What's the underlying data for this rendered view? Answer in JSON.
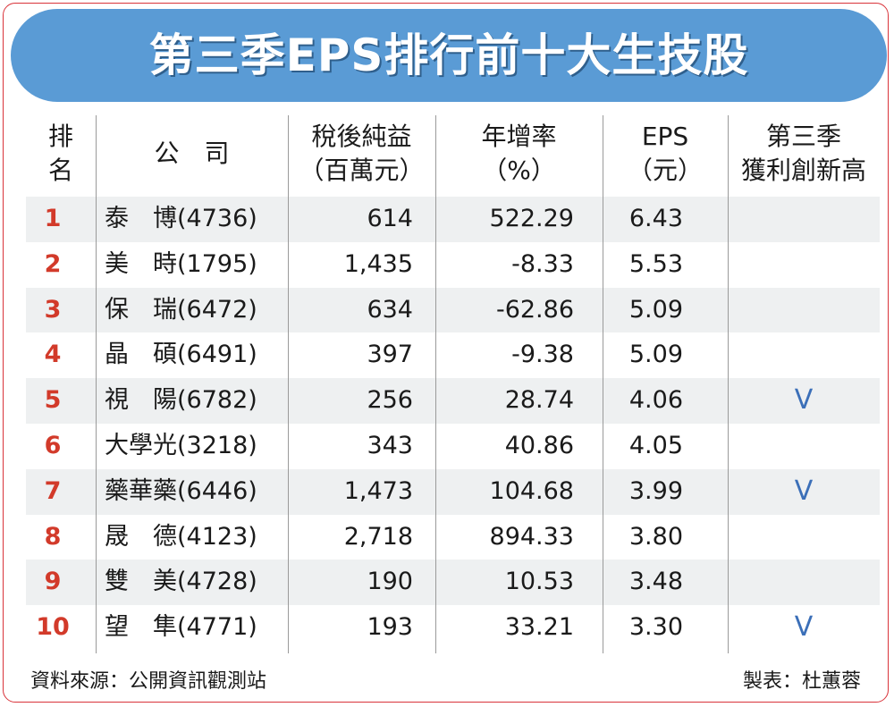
{
  "title": "第三季EPS排行前十大生技股",
  "headers": {
    "rank": [
      "排",
      "名"
    ],
    "company": "公　司",
    "net": [
      "稅後純益",
      "（百萬元）"
    ],
    "growth": [
      "年增率",
      "（%）"
    ],
    "eps": [
      "EPS",
      "（元）"
    ],
    "record": [
      "第三季",
      "獲利創新高"
    ]
  },
  "chart_data": {
    "type": "table",
    "title": "第三季EPS排行前十大生技股",
    "columns": [
      "排名",
      "公司",
      "稅後純益（百萬元）",
      "年增率（%）",
      "EPS（元）",
      "第三季獲利創新高"
    ],
    "rows": [
      {
        "rank": "1",
        "company": "泰　博(4736)",
        "net": "614",
        "growth": "522.29",
        "eps": "6.43",
        "record": ""
      },
      {
        "rank": "2",
        "company": "美　時(1795)",
        "net": "1,435",
        "growth": "-8.33",
        "eps": "5.53",
        "record": ""
      },
      {
        "rank": "3",
        "company": "保　瑞(6472)",
        "net": "634",
        "growth": "-62.86",
        "eps": "5.09",
        "record": ""
      },
      {
        "rank": "4",
        "company": "晶　碩(6491)",
        "net": "397",
        "growth": "-9.38",
        "eps": "5.09",
        "record": ""
      },
      {
        "rank": "5",
        "company": "視　陽(6782)",
        "net": "256",
        "growth": "28.74",
        "eps": "4.06",
        "record": "V"
      },
      {
        "rank": "6",
        "company": "大學光(3218)",
        "net": "343",
        "growth": "40.86",
        "eps": "4.05",
        "record": ""
      },
      {
        "rank": "7",
        "company": "藥華藥(6446)",
        "net": "1,473",
        "growth": "104.68",
        "eps": "3.99",
        "record": "V"
      },
      {
        "rank": "8",
        "company": "晟　德(4123)",
        "net": "2,718",
        "growth": "894.33",
        "eps": "3.80",
        "record": ""
      },
      {
        "rank": "9",
        "company": "雙　美(4728)",
        "net": "190",
        "growth": "10.53",
        "eps": "3.48",
        "record": ""
      },
      {
        "rank": "10",
        "company": "望　隼(4771)",
        "net": "193",
        "growth": "33.21",
        "eps": "3.30",
        "record": "V"
      }
    ]
  },
  "footer": {
    "source": "資料來源：公開資訊觀測站",
    "maker": "製表：杜蕙蓉"
  },
  "colors": {
    "title_bg": "#5a9bd5",
    "rank": "#d23a2a",
    "check": "#3b6fb8",
    "row_shade": "#eef0f1",
    "frame": "#d9333a"
  }
}
